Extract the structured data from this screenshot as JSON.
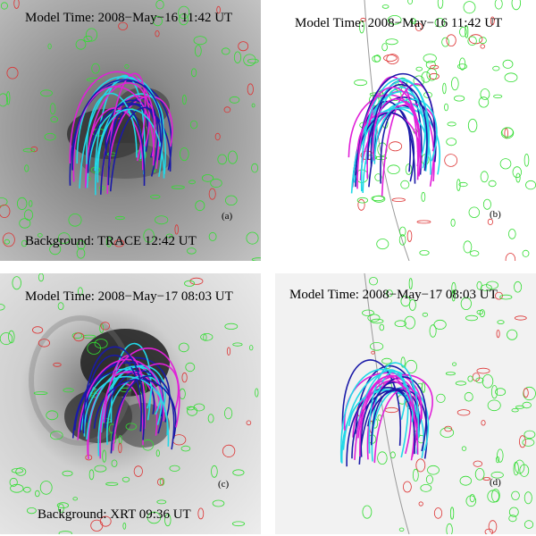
{
  "panels": [
    {
      "id": "a",
      "model_time": "Model Time: 2008−May−16 11:42 UT",
      "tag": "(a)",
      "background": "Background: TRACE 12:42 UT"
    },
    {
      "id": "b",
      "model_time": "Model Time: 2008−May−16 11:42 UT",
      "tag": "(b)"
    },
    {
      "id": "c",
      "model_time": "Model Time: 2008−May−17 08:03 UT",
      "tag": "(c)",
      "background": "Background: XRT 09:36 UT"
    },
    {
      "id": "d",
      "model_time": "Model Time: 2008−May−17 08:03 UT",
      "tag": "(d)"
    }
  ],
  "colors": {
    "field_line_dark": "#1a1aa8",
    "field_line_cyan": "#22d8e8",
    "field_line_magenta": "#e020d8",
    "contour_positive": "#33dd33",
    "contour_negative": "#dd3333",
    "limb": "#999999"
  }
}
